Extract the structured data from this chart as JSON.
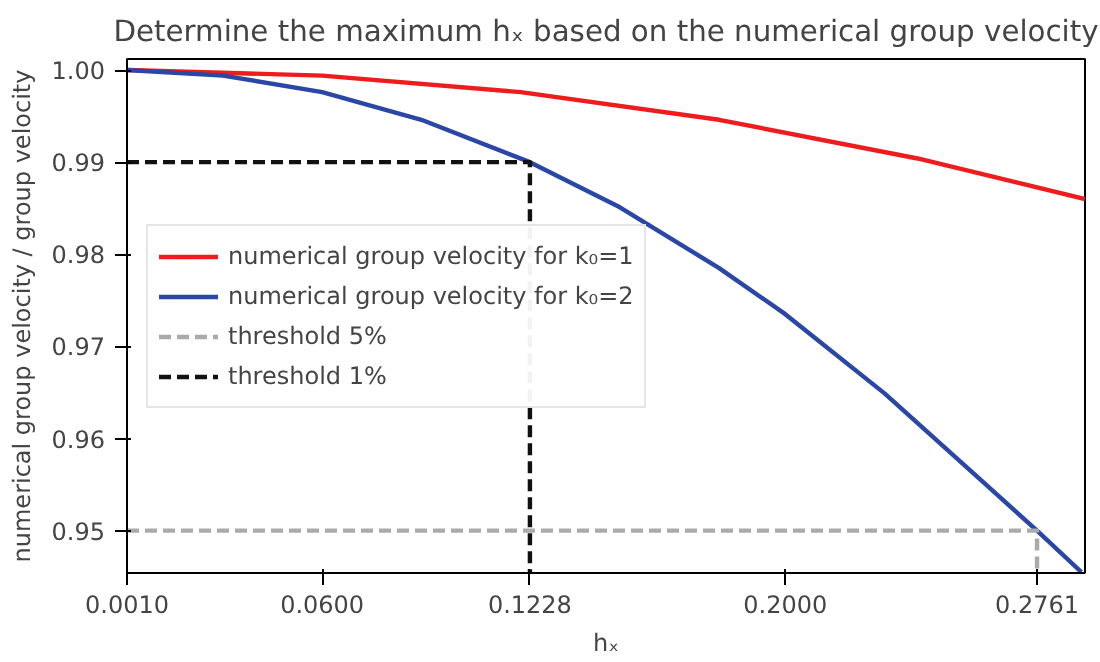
{
  "chart_data": {
    "type": "line",
    "title": "Determine the maximum hₓ based on the numerical group velocity",
    "xlabel": "hₓ",
    "ylabel": "numerical group velocity / group velocity",
    "xlim": [
      0.001,
      0.2906
    ],
    "ylim": [
      0.9454,
      1.0012
    ],
    "xticks": [
      {
        "value": 0.001,
        "label": "0.0010"
      },
      {
        "value": 0.06,
        "label": "0.0600"
      },
      {
        "value": 0.1228,
        "label": "0.1228"
      },
      {
        "value": 0.2,
        "label": "0.2000"
      },
      {
        "value": 0.2761,
        "label": "0.2761"
      }
    ],
    "yticks": [
      {
        "value": 0.95,
        "label": "0.95"
      },
      {
        "value": 0.96,
        "label": "0.96"
      },
      {
        "value": 0.97,
        "label": "0.97"
      },
      {
        "value": 0.98,
        "label": "0.98"
      },
      {
        "value": 0.99,
        "label": "0.99"
      },
      {
        "value": 1.0,
        "label": "1.00"
      }
    ],
    "grid": false,
    "legend": "left",
    "line_style": "solid",
    "marker": "none",
    "series": [
      {
        "name": "numerical group velocity for k₀=1",
        "color": "#ee1c1c",
        "x": [
          0.001,
          0.06,
          0.12,
          0.18,
          0.24,
          0.2906
        ],
        "values": [
          1.0,
          0.9994,
          0.9976,
          0.9946,
          0.9904,
          0.986
        ]
      },
      {
        "name": "numerical group velocity for k₀=2",
        "color": "#2a46a6",
        "x": [
          0.001,
          0.03,
          0.06,
          0.09,
          0.1228,
          0.15,
          0.18,
          0.2,
          0.23,
          0.26,
          0.2761,
          0.2895
        ],
        "values": [
          1.0,
          0.9994,
          0.9976,
          0.9946,
          0.99,
          0.9851,
          0.9785,
          0.9735,
          0.9649,
          0.9552,
          0.95,
          0.9455
        ]
      },
      {
        "name": "threshold 5%",
        "color": "#aaaaaa",
        "line_style": "dashed",
        "x": [
          0.001,
          0.2761,
          0.2761
        ],
        "values": [
          0.95,
          0.95,
          0.9454
        ]
      },
      {
        "name": "threshold 1%",
        "color": "#111111",
        "line_style": "dashed",
        "x": [
          0.001,
          0.1228,
          0.1228
        ],
        "values": [
          0.99,
          0.99,
          0.9454
        ]
      }
    ]
  }
}
